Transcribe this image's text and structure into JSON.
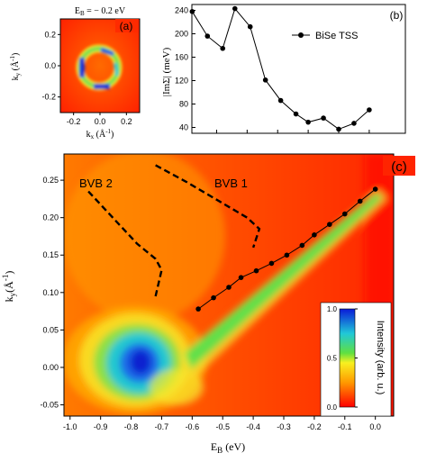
{
  "colors": {
    "hot": "#ff2a00",
    "cold": "#0a1ad8",
    "frame": "#000000",
    "marker": "#000000"
  },
  "chart_data": [
    {
      "panel": "a",
      "type": "heatmap",
      "panel_label": "(a)",
      "title": "E_B = − 0.2 eV",
      "title_main": "E",
      "title_sub": "B",
      "title_rest": " = − 0.2 eV",
      "xlabel": "k_x (Å^-1)",
      "xlabel_main": "k",
      "xlabel_sub": "x",
      "xlabel_unit": " (Å",
      "xlabel_sup": "-1",
      "xlabel_close": ")",
      "ylabel": "k_y (Å^-1)",
      "ylabel_main": "k",
      "ylabel_sub": "y",
      "ylabel_unit": " (Å",
      "ylabel_sup": "-1",
      "ylabel_close": ")",
      "xlim": [
        -0.3,
        0.3
      ],
      "ylim": [
        -0.3,
        0.3
      ],
      "xticks": [
        "-0.2",
        "0.0",
        "0.2"
      ],
      "xtick_values": [
        -0.2,
        0.0,
        0.2
      ],
      "yticks": [
        "0.2",
        "0.0",
        "-0.2"
      ],
      "ytick_values": [
        0.2,
        0.0,
        -0.2
      ],
      "ring_radius": 0.12
    },
    {
      "panel": "b",
      "type": "line",
      "panel_label": "(b)",
      "ylabel": "|ImΣ| (meV)",
      "legend": "BiSe TSS",
      "legend_position": "top-right",
      "x": [
        -0.58,
        -0.53,
        -0.48,
        -0.44,
        -0.39,
        -0.34,
        -0.29,
        -0.24,
        -0.2,
        -0.15,
        -0.1,
        -0.05,
        0.0
      ],
      "y": [
        238,
        196,
        175,
        243,
        212,
        121,
        86,
        63,
        49,
        56,
        37,
        47,
        70
      ],
      "xlim": [
        -1.0,
        0.08
      ],
      "ylim": [
        30,
        250
      ],
      "yticks": [
        "240",
        "200",
        "160",
        "120",
        "80",
        "40"
      ],
      "ytick_values": [
        240,
        200,
        160,
        120,
        80,
        40
      ]
    },
    {
      "panel": "c",
      "type": "heatmap",
      "panel_label": "(c)",
      "xlabel": "E_B (eV)",
      "xlabel_main": "E",
      "xlabel_sub": "B",
      "xlabel_rest": " (eV)",
      "ylabel": "k_y (Å^-1)",
      "ylabel_main": "k",
      "ylabel_sub": "y",
      "ylabel_unit": "(Å",
      "ylabel_sup": "-1",
      "ylabel_close": ")",
      "xlim": [
        -1.02,
        0.06
      ],
      "ylim": [
        -0.065,
        0.285
      ],
      "xticks": [
        "-1.0",
        "-0.9",
        "-0.8",
        "-0.7",
        "-0.6",
        "-0.5",
        "-0.4",
        "-0.3",
        "-0.2",
        "-0.1",
        "0.0"
      ],
      "xtick_values": [
        -1.0,
        -0.9,
        -0.8,
        -0.7,
        -0.6,
        -0.5,
        -0.4,
        -0.3,
        -0.2,
        -0.1,
        0.0
      ],
      "yticks": [
        "0.25",
        "0.20",
        "0.15",
        "0.10",
        "0.05",
        "0.00",
        "-0.05"
      ],
      "ytick_values": [
        0.25,
        0.2,
        0.15,
        0.1,
        0.05,
        0.0,
        -0.05
      ],
      "annotations": [
        "BVB 2",
        "BVB 1"
      ],
      "bvb2_path": {
        "x": [
          -0.94,
          -0.86,
          -0.78,
          -0.72,
          -0.7,
          -0.72
        ],
        "y": [
          0.235,
          0.2,
          0.165,
          0.145,
          0.13,
          0.095
        ]
      },
      "bvb1_path": {
        "x": [
          -0.72,
          -0.62,
          -0.52,
          -0.42,
          -0.38,
          -0.4
        ],
        "y": [
          0.27,
          0.248,
          0.224,
          0.2,
          0.185,
          0.16
        ]
      },
      "dispersion": {
        "x": [
          -0.58,
          -0.53,
          -0.48,
          -0.44,
          -0.39,
          -0.34,
          -0.29,
          -0.24,
          -0.2,
          -0.15,
          -0.1,
          -0.05,
          0.0
        ],
        "y": [
          0.078,
          0.093,
          0.107,
          0.12,
          0.129,
          0.139,
          0.15,
          0.163,
          0.177,
          0.191,
          0.205,
          0.222,
          0.238
        ]
      },
      "colorbar": {
        "label": "Intensity (arb. u.)",
        "ticks": [
          "1.0",
          "0.5",
          "0.0"
        ],
        "tick_values": [
          1.0,
          0.5,
          0.0
        ]
      }
    }
  ]
}
